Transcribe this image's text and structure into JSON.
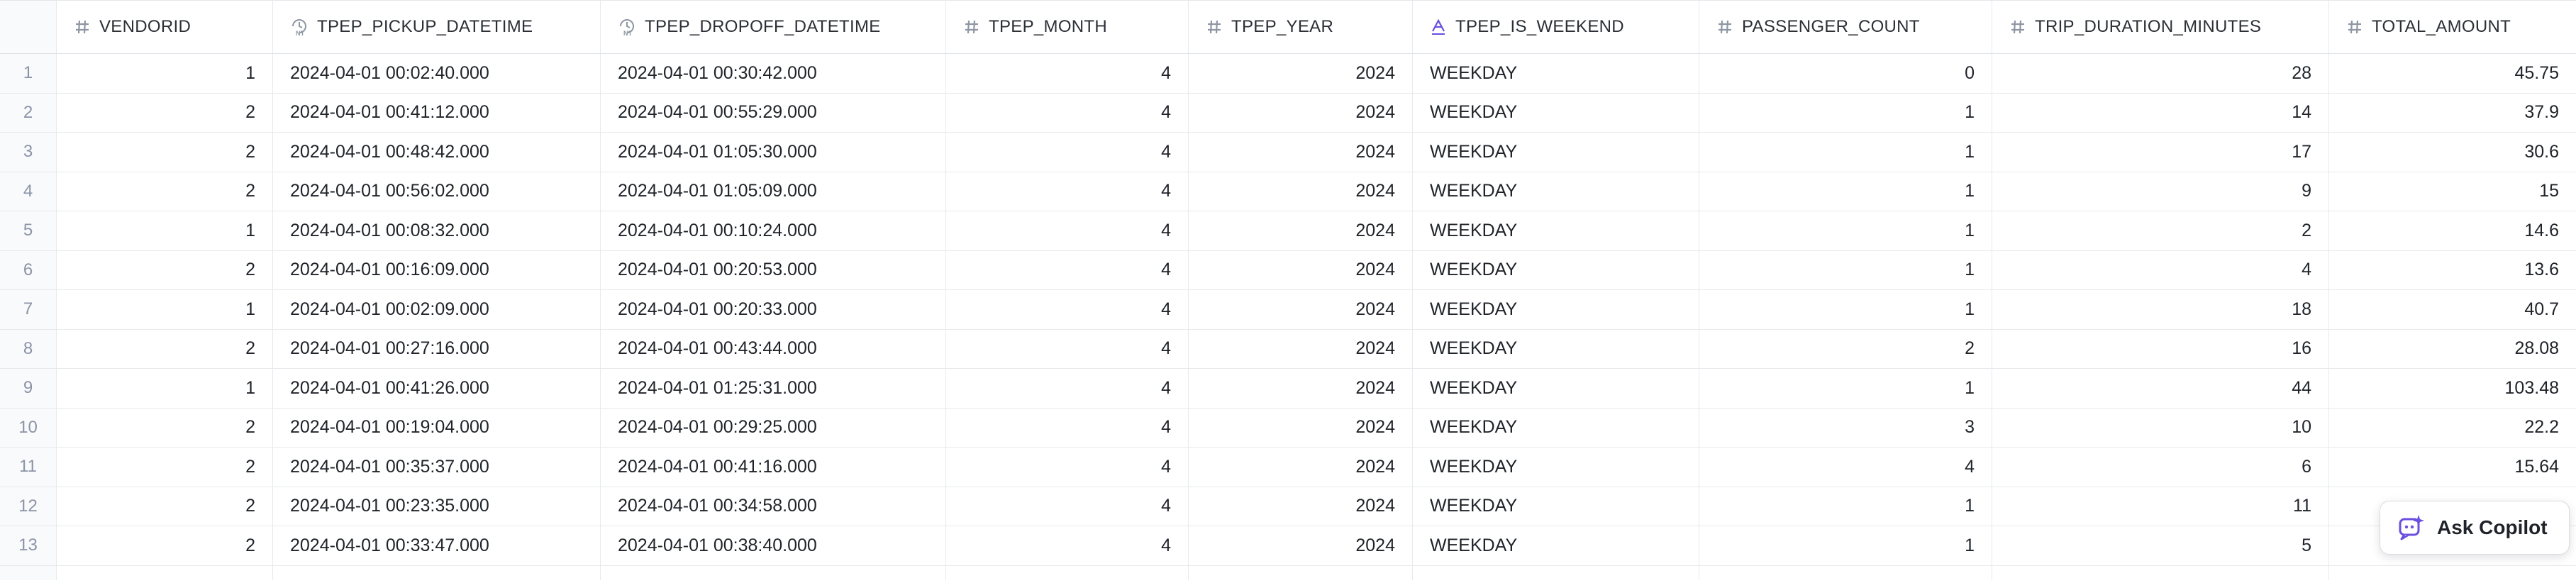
{
  "table": {
    "columns": [
      {
        "label": "VENDORID",
        "icon": "hash-icon"
      },
      {
        "label": "TPEP_PICKUP_DATETIME",
        "icon": "datetime-icon"
      },
      {
        "label": "TPEP_DROPOFF_DATETIME",
        "icon": "datetime-icon"
      },
      {
        "label": "TPEP_MONTH",
        "icon": "hash-icon"
      },
      {
        "label": "TPEP_YEAR",
        "icon": "hash-icon"
      },
      {
        "label": "TPEP_IS_WEEKEND",
        "icon": "text-icon"
      },
      {
        "label": "PASSENGER_COUNT",
        "icon": "hash-icon"
      },
      {
        "label": "TRIP_DURATION_MINUTES",
        "icon": "hash-icon"
      },
      {
        "label": "TOTAL_AMOUNT",
        "icon": "hash-icon"
      }
    ],
    "rows": [
      {
        "idx": "1",
        "vendorid": "1",
        "pickup": "2024-04-01 00:02:40.000",
        "dropoff": "2024-04-01 00:30:42.000",
        "month": "4",
        "year": "2024",
        "weekend": "WEEKDAY",
        "passengers": "0",
        "duration": "28",
        "amount": "45.75"
      },
      {
        "idx": "2",
        "vendorid": "2",
        "pickup": "2024-04-01 00:41:12.000",
        "dropoff": "2024-04-01 00:55:29.000",
        "month": "4",
        "year": "2024",
        "weekend": "WEEKDAY",
        "passengers": "1",
        "duration": "14",
        "amount": "37.9"
      },
      {
        "idx": "3",
        "vendorid": "2",
        "pickup": "2024-04-01 00:48:42.000",
        "dropoff": "2024-04-01 01:05:30.000",
        "month": "4",
        "year": "2024",
        "weekend": "WEEKDAY",
        "passengers": "1",
        "duration": "17",
        "amount": "30.6"
      },
      {
        "idx": "4",
        "vendorid": "2",
        "pickup": "2024-04-01 00:56:02.000",
        "dropoff": "2024-04-01 01:05:09.000",
        "month": "4",
        "year": "2024",
        "weekend": "WEEKDAY",
        "passengers": "1",
        "duration": "9",
        "amount": "15"
      },
      {
        "idx": "5",
        "vendorid": "1",
        "pickup": "2024-04-01 00:08:32.000",
        "dropoff": "2024-04-01 00:10:24.000",
        "month": "4",
        "year": "2024",
        "weekend": "WEEKDAY",
        "passengers": "1",
        "duration": "2",
        "amount": "14.6"
      },
      {
        "idx": "6",
        "vendorid": "2",
        "pickup": "2024-04-01 00:16:09.000",
        "dropoff": "2024-04-01 00:20:53.000",
        "month": "4",
        "year": "2024",
        "weekend": "WEEKDAY",
        "passengers": "1",
        "duration": "4",
        "amount": "13.6"
      },
      {
        "idx": "7",
        "vendorid": "1",
        "pickup": "2024-04-01 00:02:09.000",
        "dropoff": "2024-04-01 00:20:33.000",
        "month": "4",
        "year": "2024",
        "weekend": "WEEKDAY",
        "passengers": "1",
        "duration": "18",
        "amount": "40.7"
      },
      {
        "idx": "8",
        "vendorid": "2",
        "pickup": "2024-04-01 00:27:16.000",
        "dropoff": "2024-04-01 00:43:44.000",
        "month": "4",
        "year": "2024",
        "weekend": "WEEKDAY",
        "passengers": "2",
        "duration": "16",
        "amount": "28.08"
      },
      {
        "idx": "9",
        "vendorid": "1",
        "pickup": "2024-04-01 00:41:26.000",
        "dropoff": "2024-04-01 01:25:31.000",
        "month": "4",
        "year": "2024",
        "weekend": "WEEKDAY",
        "passengers": "1",
        "duration": "44",
        "amount": "103.48"
      },
      {
        "idx": "10",
        "vendorid": "2",
        "pickup": "2024-04-01 00:19:04.000",
        "dropoff": "2024-04-01 00:29:25.000",
        "month": "4",
        "year": "2024",
        "weekend": "WEEKDAY",
        "passengers": "3",
        "duration": "10",
        "amount": "22.2"
      },
      {
        "idx": "11",
        "vendorid": "2",
        "pickup": "2024-04-01 00:35:37.000",
        "dropoff": "2024-04-01 00:41:16.000",
        "month": "4",
        "year": "2024",
        "weekend": "WEEKDAY",
        "passengers": "4",
        "duration": "6",
        "amount": "15.64"
      },
      {
        "idx": "12",
        "vendorid": "2",
        "pickup": "2024-04-01 00:23:35.000",
        "dropoff": "2024-04-01 00:34:58.000",
        "month": "4",
        "year": "2024",
        "weekend": "WEEKDAY",
        "passengers": "1",
        "duration": "11",
        "amount": ""
      },
      {
        "idx": "13",
        "vendorid": "2",
        "pickup": "2024-04-01 00:33:47.000",
        "dropoff": "2024-04-01 00:38:40.000",
        "month": "4",
        "year": "2024",
        "weekend": "WEEKDAY",
        "passengers": "1",
        "duration": "5",
        "amount": ""
      }
    ]
  },
  "copilot": {
    "label": "Ask Copilot",
    "icon": "copilot-sparkle-icon",
    "accent": "#6b4fe0"
  },
  "colors": {
    "row_index": "#8b93a7",
    "icon_gray": "#8f96a3",
    "grid_line": "#e7e9ec"
  }
}
